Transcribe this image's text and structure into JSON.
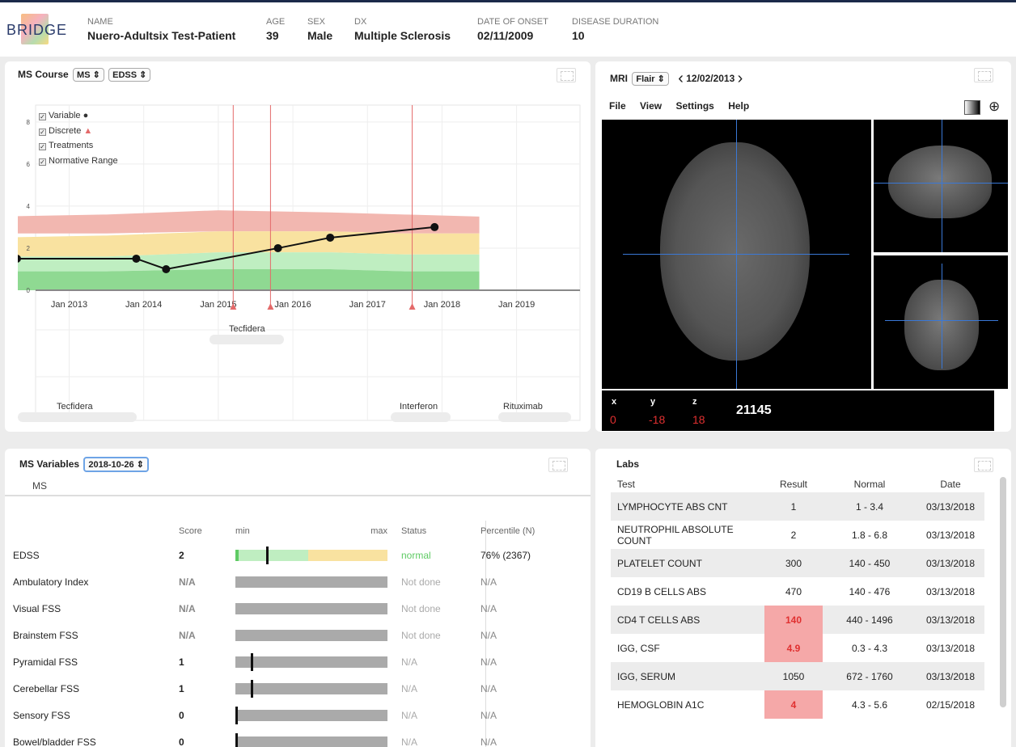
{
  "header": {
    "logo": "BRIDGE",
    "name_label": "NAME",
    "name": "Nuero-Adultsix Test-Patient",
    "age_label": "AGE",
    "age": "39",
    "sex_label": "SEX",
    "sex": "Male",
    "dx_label": "DX",
    "dx": "Multiple Sclerosis",
    "onset_label": "DATE OF ONSET",
    "onset": "02/11/2009",
    "duration_label": "DISEASE DURATION",
    "duration": "10"
  },
  "course": {
    "title": "MS Course",
    "select1": "MS ⇕",
    "select2": "EDSS ⇕",
    "legend": [
      "Variable",
      "Discrete",
      "Treatments",
      "Normative Range"
    ],
    "treatments": [
      "Tecfidera",
      "Tecfidera",
      "Interferon",
      "Rituximab"
    ]
  },
  "chart_data": {
    "type": "line",
    "x_ticks": [
      "Jan 2013",
      "Jan 2014",
      "Jan 2015",
      "Jan 2016",
      "Jan 2017",
      "Jan 2018",
      "Jan 2019"
    ],
    "y_ticks": [
      "0",
      "2",
      "4",
      "6",
      "8"
    ],
    "ylim": [
      0,
      8.8
    ],
    "series": [
      {
        "name": "Variable",
        "points": [
          [
            2012.3,
            1.5
          ],
          [
            2013.9,
            1.5
          ],
          [
            2014.3,
            1.0
          ],
          [
            2015.8,
            2.0
          ],
          [
            2016.5,
            2.5
          ],
          [
            2017.9,
            3.0
          ]
        ]
      }
    ],
    "discrete_events": [
      2015.2,
      2015.7,
      2017.6
    ],
    "normative_range_bands": [
      {
        "color": "#f2b7b0",
        "lower": [
          2.7,
          2.7,
          2.8,
          2.8,
          2.7,
          2.7
        ],
        "upper": [
          3.5,
          3.6,
          3.8,
          3.7,
          3.6,
          3.5
        ]
      },
      {
        "color": "#f9e2a0",
        "lower": [
          1.6,
          1.6,
          1.8,
          1.8,
          1.7,
          1.7
        ],
        "upper": [
          2.5,
          2.6,
          2.8,
          2.8,
          2.7,
          2.7
        ]
      },
      {
        "color": "#bfeec1",
        "lower": [
          0.9,
          0.9,
          1.0,
          1.0,
          0.9,
          0.9
        ],
        "upper": [
          1.6,
          1.6,
          1.8,
          1.8,
          1.7,
          1.7
        ]
      },
      {
        "color": "#8fd992",
        "lower": [
          0,
          0,
          0,
          0,
          0,
          0
        ],
        "upper": [
          0.9,
          0.9,
          1.0,
          1.0,
          0.9,
          0.9
        ]
      }
    ],
    "band_x": [
      2012,
      2013.5,
      2015,
      2016.5,
      2017.5,
      2018.5
    ],
    "colors": {
      "line": "#111111",
      "event": "#e46a6a",
      "axis": "#888888"
    }
  },
  "mri": {
    "title": "MRI",
    "select": "Flair ⇕",
    "date": "12/02/2013",
    "menu": [
      "File",
      "View",
      "Settings",
      "Help"
    ],
    "x_label": "x",
    "y_label": "y",
    "z_label": "z",
    "x": "0",
    "y": "-18",
    "z": "18",
    "value": "21145"
  },
  "variables": {
    "title": "MS Variables",
    "select": "2018-10-26 ⇕",
    "tab": "MS",
    "headers": {
      "score": "Score",
      "min": "min",
      "max": "max",
      "status": "Status",
      "percentile": "Percentile (N)"
    },
    "rows": [
      {
        "name": "EDSS",
        "score": "2",
        "status": "normal",
        "pct": "76% (2367)",
        "level": 0.2,
        "kind": "range"
      },
      {
        "name": "Ambulatory Index",
        "score": "N/A",
        "status": "Not done",
        "pct": "N/A",
        "level": null,
        "kind": "na"
      },
      {
        "name": "Visual FSS",
        "score": "N/A",
        "status": "Not done",
        "pct": "N/A",
        "level": null,
        "kind": "na"
      },
      {
        "name": "Brainstem FSS",
        "score": "N/A",
        "status": "Not done",
        "pct": "N/A",
        "level": null,
        "kind": "na"
      },
      {
        "name": "Pyramidal FSS",
        "score": "1",
        "status": "N/A",
        "pct": "N/A",
        "level": 0.1,
        "kind": "val"
      },
      {
        "name": "Cerebellar FSS",
        "score": "1",
        "status": "N/A",
        "pct": "N/A",
        "level": 0.1,
        "kind": "val"
      },
      {
        "name": "Sensory FSS",
        "score": "0",
        "status": "N/A",
        "pct": "N/A",
        "level": 0,
        "kind": "val"
      },
      {
        "name": "Bowel/bladder FSS",
        "score": "0",
        "status": "N/A",
        "pct": "N/A",
        "level": 0,
        "kind": "val"
      }
    ]
  },
  "labs": {
    "title": "Labs",
    "headers": {
      "test": "Test",
      "result": "Result",
      "normal": "Normal",
      "date": "Date"
    },
    "rows": [
      {
        "test": "LYMPHOCYTE ABS CNT",
        "result": "1",
        "normal": "1 - 3.4",
        "date": "03/13/2018",
        "flag": false
      },
      {
        "test": "NEUTROPHIL ABSOLUTE COUNT",
        "result": "2",
        "normal": "1.8 - 6.8",
        "date": "03/13/2018",
        "flag": false
      },
      {
        "test": "PLATELET COUNT",
        "result": "300",
        "normal": "140 - 450",
        "date": "03/13/2018",
        "flag": false
      },
      {
        "test": "CD19 B CELLS ABS",
        "result": "470",
        "normal": "140 - 476",
        "date": "03/13/2018",
        "flag": false
      },
      {
        "test": "CD4 T CELLS ABS",
        "result": "140",
        "normal": "440 - 1496",
        "date": "03/13/2018",
        "flag": true
      },
      {
        "test": "IGG, CSF",
        "result": "4.9",
        "normal": "0.3 - 4.3",
        "date": "03/13/2018",
        "flag": true
      },
      {
        "test": "IGG, SERUM",
        "result": "1050",
        "normal": "672 - 1760",
        "date": "03/13/2018",
        "flag": false
      },
      {
        "test": "HEMOGLOBIN A1C",
        "result": "4",
        "normal": "4.3 - 5.6",
        "date": "02/15/2018",
        "flag": true
      }
    ]
  }
}
